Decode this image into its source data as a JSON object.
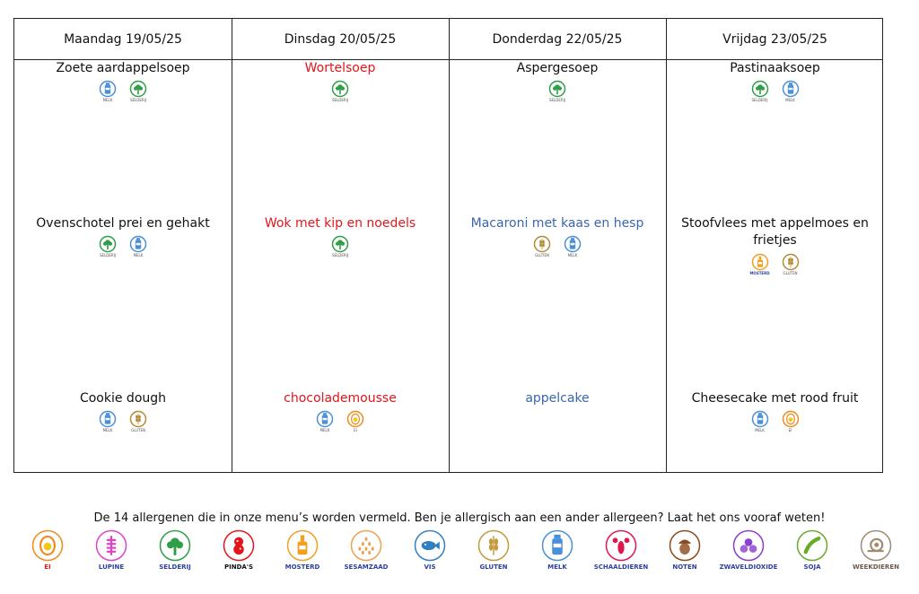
{
  "days": [
    {
      "header": "Maandag 19/05/25",
      "soup": {
        "name": "Zoete aardappelsoep",
        "color": "#111111",
        "allergens": [
          {
            "icon": "milk-bottle",
            "label": "MELK",
            "color": "#4a90d9"
          },
          {
            "icon": "celery",
            "label": "SELDERIJ",
            "color": "#2e9e47"
          }
        ]
      },
      "main": {
        "name": "Ovenschotel prei en gehakt",
        "color": "#111111",
        "allergens": [
          {
            "icon": "celery",
            "label": "SELDERIJ",
            "color": "#2e9e47"
          },
          {
            "icon": "milk-bottle",
            "label": "MELK",
            "color": "#4a90d9"
          }
        ]
      },
      "dessert": {
        "name": "Cookie dough",
        "color": "#111111",
        "allergens": [
          {
            "icon": "milk-bottle",
            "label": "MELK",
            "color": "#4a90d9"
          },
          {
            "icon": "wheat",
            "label": "GLUTEN",
            "color": "#b58a35"
          }
        ]
      }
    },
    {
      "header": "Dinsdag 20/05/25",
      "soup": {
        "name": "Wortelsoep",
        "color": "#e3151b",
        "allergens": [
          {
            "icon": "celery",
            "label": "SELDERIJ",
            "color": "#2e9e47"
          }
        ]
      },
      "main": {
        "name": "Wok met kip en noedels",
        "color": "#e3151b",
        "allergens": [
          {
            "icon": "celery",
            "label": "SELDERIJ",
            "color": "#2e9e47"
          }
        ]
      },
      "dessert": {
        "name": "chocolademousse",
        "color": "#e3151b",
        "allergens": [
          {
            "icon": "milk-bottle",
            "label": "MELK",
            "color": "#4a90d9"
          },
          {
            "icon": "egg",
            "label": "EI",
            "color": "#f08a1c"
          }
        ]
      }
    },
    {
      "header": "Donderdag 22/05/25",
      "soup": {
        "name": "Aspergesoep",
        "color": "#111111",
        "allergens": [
          {
            "icon": "celery",
            "label": "SELDERIJ",
            "color": "#2e9e47"
          }
        ]
      },
      "main": {
        "name": "Macaroni met kaas en hesp",
        "color": "#3a66b0",
        "allergens": [
          {
            "icon": "wheat",
            "label": "GLUTEN",
            "color": "#b58a35"
          },
          {
            "icon": "milk-bottle",
            "label": "MELK",
            "color": "#4a90d9"
          }
        ]
      },
      "dessert": {
        "name": "appelcake",
        "color": "#3a66b0",
        "allergens": []
      }
    },
    {
      "header": "Vrijdag 23/05/25",
      "soup": {
        "name": "Pastinaaksoep",
        "color": "#111111",
        "allergens": [
          {
            "icon": "celery",
            "label": "SELDERIJ",
            "color": "#2e9e47"
          },
          {
            "icon": "milk-bottle",
            "label": "MELK",
            "color": "#4a90d9"
          }
        ]
      },
      "main": {
        "name": "Stoofvlees met appelmoes en frietjes",
        "color": "#111111",
        "allergens": [
          {
            "icon": "mustard",
            "label": "MOSTERD",
            "color": "#f2a020"
          },
          {
            "icon": "wheat",
            "label": "GLUTEN",
            "color": "#b58a35"
          }
        ]
      },
      "dessert": {
        "name": "Cheesecake met rood fruit",
        "color": "#111111",
        "allergens": [
          {
            "icon": "milk-bottle",
            "label": "MELK",
            "color": "#4a90d9"
          },
          {
            "icon": "egg",
            "label": "EI",
            "color": "#f08a1c"
          }
        ]
      }
    }
  ],
  "legend": {
    "text": "De 14 allergenen die in onze menu’s worden vermeld. Ben je allergisch aan een ander allergeen? Laat het ons vooraf weten!",
    "items": [
      {
        "icon": "egg",
        "label": "EI",
        "color": "#e3151b",
        "ring": "#f08a1c"
      },
      {
        "icon": "lupine",
        "label": "LUPINE",
        "color": "#2c3fa0",
        "ring": "#e040c8"
      },
      {
        "icon": "celery",
        "label": "SELDERIJ",
        "color": "#2c3fa0",
        "ring": "#2e9e47"
      },
      {
        "icon": "peanut",
        "label": "PINDA'S",
        "color": "#111111",
        "ring": "#e3151b"
      },
      {
        "icon": "mustard",
        "label": "MOSTERD",
        "color": "#2c3fa0",
        "ring": "#f2a020"
      },
      {
        "icon": "sesame",
        "label": "SESAMZAAD",
        "color": "#2c3fa0",
        "ring": "#f0a050"
      },
      {
        "icon": "fish",
        "label": "VIS",
        "color": "#2c3fa0",
        "ring": "#2f7fc1"
      },
      {
        "icon": "wheat",
        "label": "GLUTEN",
        "color": "#2c3fa0",
        "ring": "#c49a3a"
      },
      {
        "icon": "milk-bottle",
        "label": "MELK",
        "color": "#2c3fa0",
        "ring": "#4a90d9"
      },
      {
        "icon": "lobster",
        "label": "SCHAALDIEREN",
        "color": "#2c3fa0",
        "ring": "#e3154e"
      },
      {
        "icon": "acorn",
        "label": "NOTEN",
        "color": "#2c3fa0",
        "ring": "#8a4a1c"
      },
      {
        "icon": "sulphite",
        "label": "ZWAVELDIOXIDE",
        "color": "#2c3fa0",
        "ring": "#8a3fd0"
      },
      {
        "icon": "soy",
        "label": "SOJA",
        "color": "#2c3fa0",
        "ring": "#6aaa2a"
      },
      {
        "icon": "snail",
        "label": "WEEKDIEREN",
        "color": "#6a5a4a",
        "ring": "#a08a70"
      }
    ]
  }
}
